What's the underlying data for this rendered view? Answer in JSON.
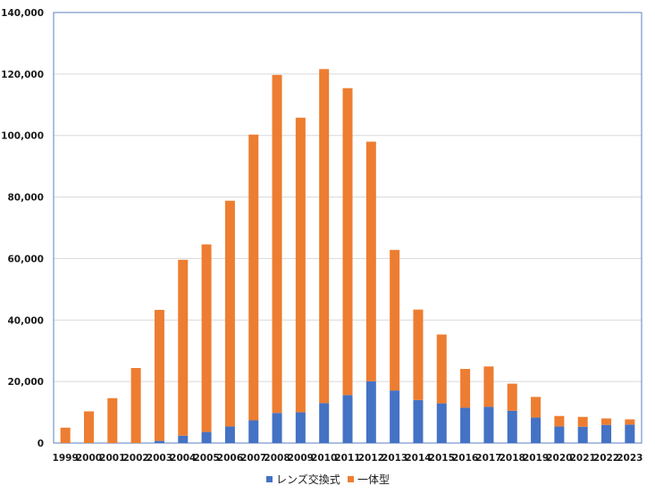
{
  "chart_data": {
    "type": "bar",
    "stacked": true,
    "title": "",
    "xlabel": "",
    "ylabel": "",
    "categories": [
      "1999",
      "2000",
      "2001",
      "2002",
      "2003",
      "2004",
      "2005",
      "2006",
      "2007",
      "2008",
      "2009",
      "2010",
      "2011",
      "2012",
      "2013",
      "2014",
      "2015",
      "2016",
      "2017",
      "2018",
      "2019",
      "2020",
      "2021",
      "2022",
      "2023"
    ],
    "series": [
      {
        "name": "レンズ交換式",
        "color": "#4472c4",
        "values": [
          0,
          0,
          0,
          0,
          700,
          2400,
          3600,
          5400,
          7400,
          9800,
          10000,
          13000,
          15600,
          20100,
          17100,
          14000,
          12900,
          11500,
          11800,
          10500,
          8300,
          5400,
          5300,
          5900,
          6000
        ]
      },
      {
        "name": "一体型",
        "color": "#ed7d31",
        "values": [
          5000,
          10300,
          14600,
          24400,
          42600,
          57200,
          61000,
          73400,
          92900,
          109900,
          95800,
          108600,
          99800,
          77900,
          45700,
          29400,
          22400,
          12600,
          13100,
          8800,
          6700,
          3400,
          3200,
          2100,
          1700
        ]
      }
    ],
    "ylim": [
      0,
      140000
    ],
    "yticks": [
      "0",
      "20,000",
      "40,000",
      "60,000",
      "80,000",
      "100,000",
      "120,000",
      "140,000"
    ],
    "grid": true,
    "legend_position": "bottom"
  }
}
